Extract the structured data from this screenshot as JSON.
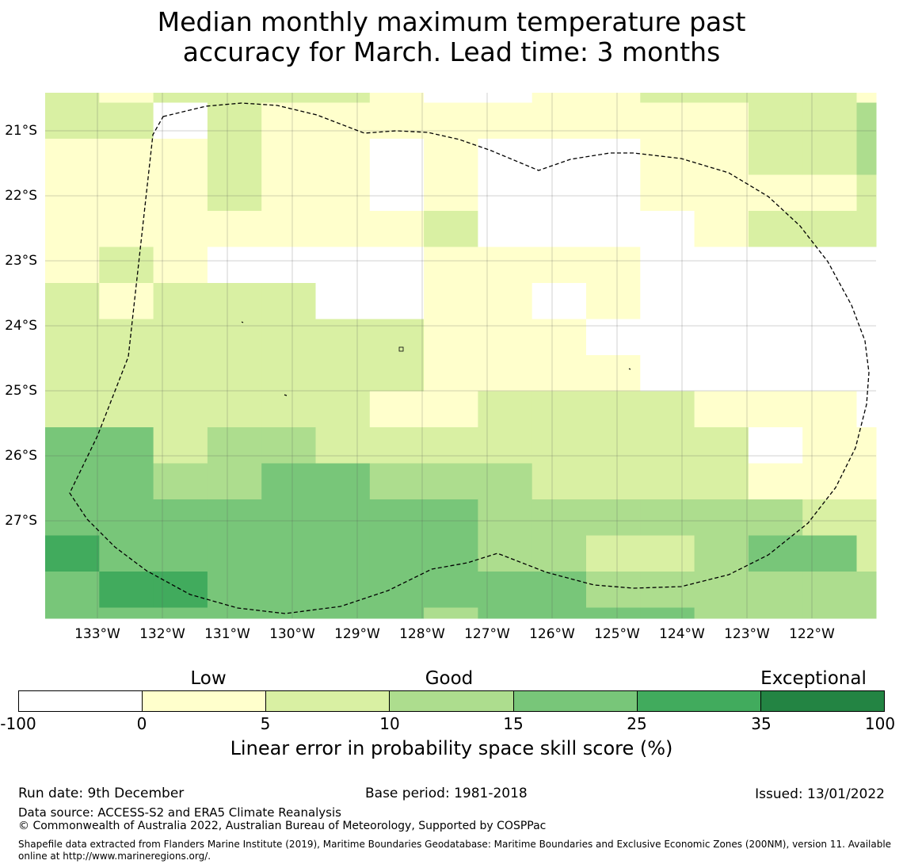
{
  "title": {
    "line1": "Median monthly maximum temperature past",
    "line2": "accuracy for March. Lead time: 3 months"
  },
  "map": {
    "lat_labels": [
      "21°S",
      "22°S",
      "23°S",
      "24°S",
      "25°S",
      "26°S",
      "27°S"
    ],
    "lon_labels": [
      "133°W",
      "132°W",
      "131°W",
      "130°W",
      "129°W",
      "128°W",
      "127°W",
      "126°W",
      "125°W",
      "124°W",
      "123°W",
      "122°W"
    ],
    "grid_categories": [
      [
        2,
        1,
        2,
        2,
        2,
        2,
        1,
        0,
        0,
        1,
        1,
        2,
        2,
        2,
        2,
        1,
        2,
        2,
        2,
        2,
        1,
        2
      ],
      [
        2,
        2,
        0,
        2,
        1,
        1,
        1,
        1,
        1,
        1,
        1,
        1,
        1,
        2,
        2,
        3,
        2,
        2,
        2,
        2,
        2,
        1
      ],
      [
        1,
        1,
        1,
        2,
        1,
        1,
        0,
        1,
        0,
        0,
        0,
        1,
        1,
        2,
        2,
        3,
        2,
        2,
        2,
        2,
        2,
        1
      ],
      [
        1,
        1,
        1,
        2,
        1,
        1,
        0,
        1,
        0,
        0,
        0,
        1,
        1,
        1,
        1,
        2,
        1,
        1,
        0,
        2,
        2,
        2
      ],
      [
        1,
        1,
        1,
        1,
        1,
        1,
        1,
        2,
        0,
        0,
        0,
        0,
        1,
        2,
        2,
        2,
        1,
        1,
        0,
        1,
        1,
        1
      ],
      [
        1,
        2,
        1,
        0,
        0,
        0,
        0,
        1,
        1,
        1,
        1,
        0,
        0,
        0,
        0,
        0,
        0,
        1,
        0,
        1,
        1,
        1
      ],
      [
        2,
        1,
        2,
        2,
        2,
        0,
        0,
        1,
        1,
        0,
        1,
        0,
        0,
        0,
        0,
        0,
        0,
        1,
        1,
        1,
        2,
        2
      ],
      [
        2,
        2,
        2,
        2,
        2,
        2,
        2,
        1,
        1,
        1,
        0,
        0,
        0,
        0,
        0,
        0,
        0,
        1,
        1,
        1,
        2,
        2
      ],
      [
        2,
        2,
        2,
        2,
        2,
        2,
        2,
        1,
        1,
        1,
        1,
        0,
        0,
        0,
        0,
        0,
        1,
        1,
        1,
        1,
        1,
        1
      ],
      [
        2,
        2,
        2,
        2,
        2,
        2,
        1,
        1,
        2,
        2,
        2,
        2,
        1,
        1,
        1,
        0,
        0,
        0,
        1,
        1,
        2,
        2
      ],
      [
        4,
        4,
        2,
        3,
        3,
        2,
        2,
        2,
        2,
        2,
        2,
        2,
        2,
        0,
        1,
        1,
        1,
        2,
        1,
        1,
        1,
        1
      ],
      [
        4,
        4,
        3,
        3,
        4,
        4,
        3,
        3,
        3,
        2,
        2,
        2,
        2,
        1,
        1,
        1,
        1,
        1,
        2,
        2,
        2,
        2
      ],
      [
        4,
        4,
        4,
        4,
        4,
        4,
        4,
        4,
        3,
        3,
        3,
        3,
        3,
        3,
        2,
        2,
        2,
        2,
        1,
        2,
        2,
        3
      ],
      [
        5,
        4,
        4,
        4,
        4,
        4,
        4,
        4,
        3,
        3,
        2,
        2,
        3,
        4,
        4,
        2,
        2,
        2,
        2,
        2,
        2,
        2
      ],
      [
        4,
        5,
        5,
        4,
        4,
        4,
        4,
        4,
        4,
        4,
        3,
        3,
        3,
        3,
        3,
        3,
        2,
        2,
        2,
        2,
        2,
        2
      ],
      [
        4,
        4,
        4,
        4,
        4,
        4,
        4,
        3,
        4,
        4,
        4,
        4,
        3,
        3,
        3,
        3,
        3,
        3,
        3,
        3,
        3,
        4
      ],
      [
        4,
        4,
        4,
        4,
        4,
        4,
        4,
        4,
        4,
        4,
        4,
        3,
        3,
        3,
        3,
        4,
        4,
        4,
        4,
        2,
        2,
        4
      ],
      [
        4,
        4,
        4,
        4,
        4,
        4,
        4,
        4,
        4,
        4,
        4,
        3,
        3,
        3,
        3,
        4,
        4,
        4,
        4,
        4,
        4,
        4
      ]
    ]
  },
  "colorbar": {
    "colors": [
      "#ffffff",
      "#ffffcc",
      "#d9f0a3",
      "#addd8e",
      "#78c679",
      "#41ab5d",
      "#238443"
    ],
    "ticks": [
      "-100",
      "0",
      "5",
      "10",
      "15",
      "25",
      "35",
      "100"
    ],
    "categories": [
      "Low",
      "Good",
      "Exceptional"
    ],
    "label": "Linear error in probability space skill score (%)"
  },
  "footer": {
    "run_date": "Run date: 9th December",
    "base_period": "Base period: 1981-2018",
    "issued": "Issued: 13/01/2022",
    "data_source": "Data source: ACCESS-S2 and ERA5 Climate Reanalysis",
    "copyright": "© Commonwealth of Australia 2022, Australian Bureau of Meteorology, Supported by COSPPac",
    "shapefile": "Shapefile data extracted from Flanders Marine Institute (2019), Maritime Boundaries Geodatabase: Maritime Boundaries and Exclusive Economic Zones (200NM), version 11. Available online at http://www.marineregions.org/."
  }
}
